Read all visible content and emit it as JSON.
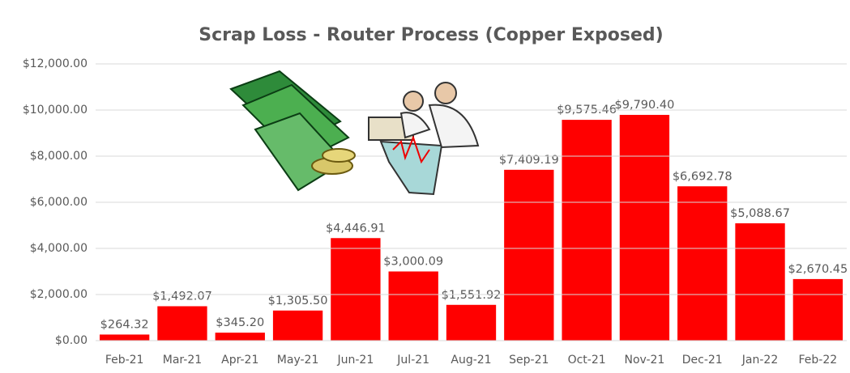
{
  "chart_data": {
    "type": "bar",
    "title": "Scrap Loss - Router Process (Copper Exposed)",
    "categories": [
      "Feb-21",
      "Mar-21",
      "Apr-21",
      "May-21",
      "Jun-21",
      "Jul-21",
      "Aug-21",
      "Sep-21",
      "Oct-21",
      "Nov-21",
      "Dec-21",
      "Jan-22",
      "Feb-22"
    ],
    "values": [
      264.32,
      1492.07,
      345.2,
      1305.5,
      4446.91,
      3000.09,
      1551.92,
      7409.19,
      9575.46,
      9790.4,
      6692.78,
      5088.67,
      2670.45
    ],
    "value_labels": [
      "$264.32",
      "$1,492.07",
      "$345.20",
      "$1,305.50",
      "$4,446.91",
      "$3,000.09",
      "$1,551.92",
      "$7,409.19",
      "$9,575.46",
      "$9,790.40",
      "$6,692.78",
      "$5,088.67",
      "$2,670.45"
    ],
    "color": "#ff0000",
    "ylim": [
      0,
      12000
    ],
    "yticks": [
      {
        "value": 0,
        "label": "$0.00"
      },
      {
        "value": 2000,
        "label": "$2,000.00"
      },
      {
        "value": 4000,
        "label": "$4,000.00"
      },
      {
        "value": 6000,
        "label": "$6,000.00"
      },
      {
        "value": 8000,
        "label": "$8,000.00"
      },
      {
        "value": 10000,
        "label": "$10,000.00"
      },
      {
        "value": 12000,
        "label": "$12,000.00"
      }
    ],
    "grid": true
  }
}
